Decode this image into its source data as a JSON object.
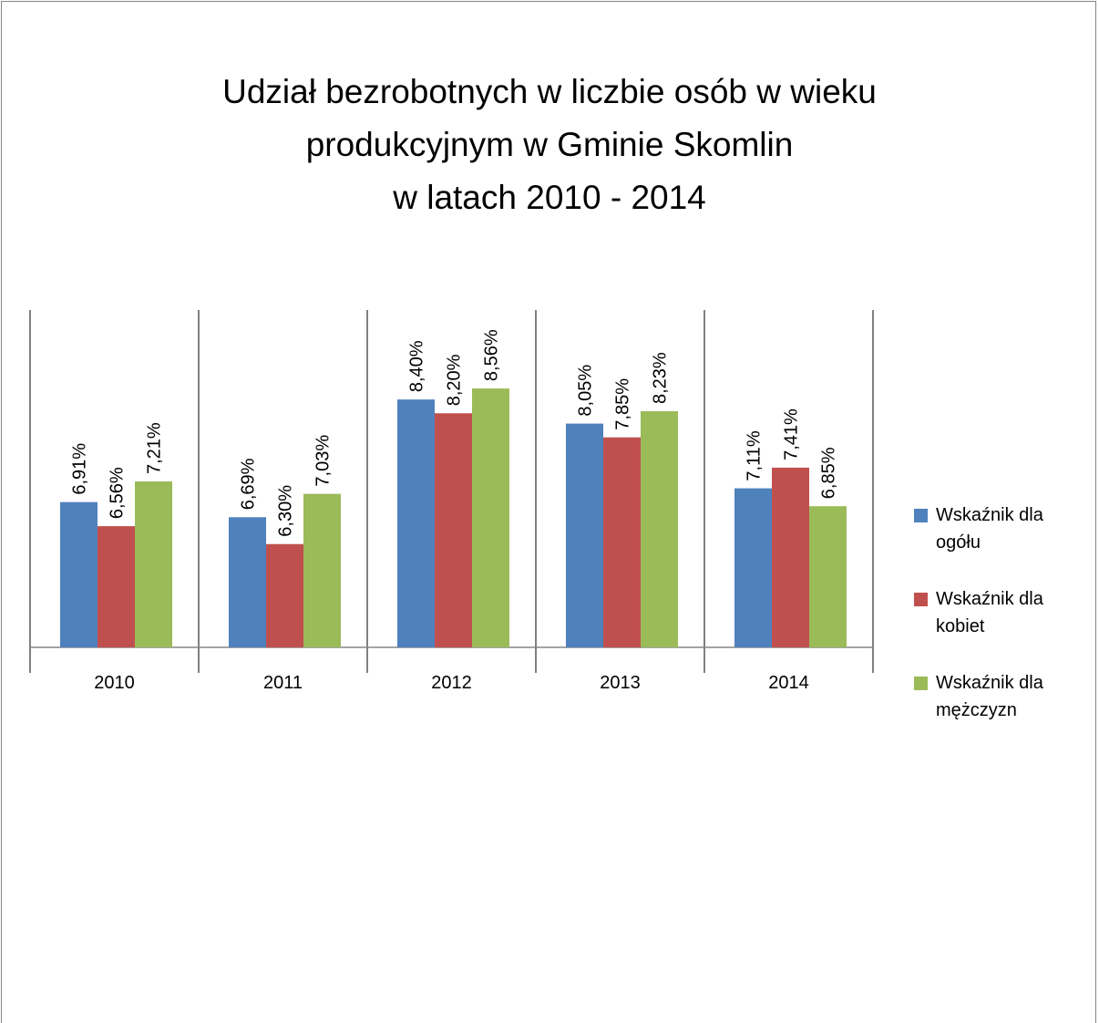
{
  "chart_data": {
    "type": "bar",
    "title": "Udział bezrobotnych w liczbie osób w wieku\nprodukcyjnym  w Gminie Skomlin\nw latach 2010 - 2014",
    "categories": [
      "2010",
      "2011",
      "2012",
      "2013",
      "2014"
    ],
    "series": [
      {
        "name": "Wskaźnik dla ogółu",
        "color": "#4f81bd",
        "values": [
          6.91,
          6.69,
          8.4,
          8.05,
          7.11
        ],
        "value_labels": [
          "6,91%",
          "6,69%",
          "8,40%",
          "8,05%",
          "7,11%"
        ]
      },
      {
        "name": "Wskaźnik dla kobiet",
        "color": "#c0504d",
        "values": [
          6.56,
          6.3,
          8.2,
          7.85,
          7.41
        ],
        "value_labels": [
          "6,56%",
          "6,30%",
          "8,20%",
          "7,85%",
          "7,41%"
        ]
      },
      {
        "name": "Wskaźnik dla mężczyzn",
        "color": "#9bbb59",
        "values": [
          7.21,
          7.03,
          8.56,
          8.23,
          6.85
        ],
        "value_labels": [
          "7,21%",
          "7,03%",
          "8,56%",
          "8,23%",
          "6,85%"
        ]
      }
    ],
    "ylim": [
      4.8,
      9.7
    ],
    "legend": "right"
  }
}
